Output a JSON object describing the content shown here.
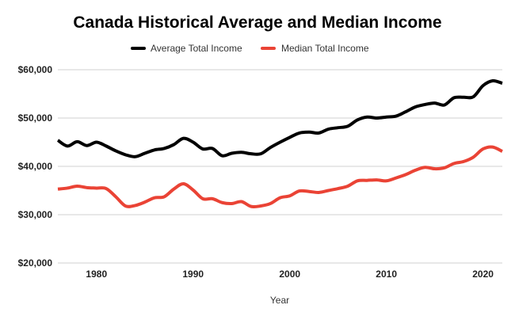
{
  "chart_data": {
    "type": "line",
    "title": "Canada Historical Average and Median Income",
    "xlabel": "Year",
    "ylabel": "",
    "xlim": [
      1976,
      2022
    ],
    "ylim": [
      20000,
      60000
    ],
    "grid": true,
    "legend_position": "top",
    "x_ticks": [
      1980,
      1990,
      2000,
      2010,
      2020
    ],
    "y_ticks": [
      20000,
      30000,
      40000,
      50000,
      60000
    ],
    "y_tick_labels": [
      "$20,000",
      "$30,000",
      "$40,000",
      "$50,000",
      "$60,000"
    ],
    "x": [
      1976,
      1977,
      1978,
      1979,
      1980,
      1981,
      1982,
      1983,
      1984,
      1985,
      1986,
      1987,
      1988,
      1989,
      1990,
      1991,
      1992,
      1993,
      1994,
      1995,
      1996,
      1997,
      1998,
      1999,
      2000,
      2001,
      2002,
      2003,
      2004,
      2005,
      2006,
      2007,
      2008,
      2009,
      2010,
      2011,
      2012,
      2013,
      2014,
      2015,
      2016,
      2017,
      2018,
      2019,
      2020,
      2021,
      2022
    ],
    "series": [
      {
        "name": "Average Total Income",
        "color": "#000000",
        "values": [
          45400,
          44200,
          45100,
          44300,
          45000,
          44200,
          43200,
          42400,
          42000,
          42700,
          43400,
          43700,
          44500,
          45800,
          45000,
          43600,
          43700,
          42200,
          42700,
          42900,
          42600,
          42600,
          43900,
          45000,
          46000,
          46900,
          47100,
          46900,
          47700,
          48000,
          48300,
          49600,
          50200,
          50000,
          50200,
          50400,
          51300,
          52300,
          52800,
          53100,
          52700,
          54200,
          54300,
          54400,
          56700,
          57700,
          57200
        ]
      },
      {
        "name": "Median Total Income",
        "color": "#ea4335",
        "values": [
          35300,
          35500,
          35900,
          35600,
          35500,
          35400,
          33700,
          31800,
          31900,
          32600,
          33500,
          33700,
          35300,
          36400,
          35100,
          33300,
          33300,
          32500,
          32300,
          32700,
          31700,
          31800,
          32300,
          33500,
          33900,
          34900,
          34800,
          34600,
          35000,
          35400,
          35900,
          37000,
          37100,
          37200,
          37000,
          37600,
          38300,
          39200,
          39800,
          39500,
          39700,
          40600,
          41000,
          41900,
          43600,
          44000,
          43100
        ]
      }
    ]
  }
}
